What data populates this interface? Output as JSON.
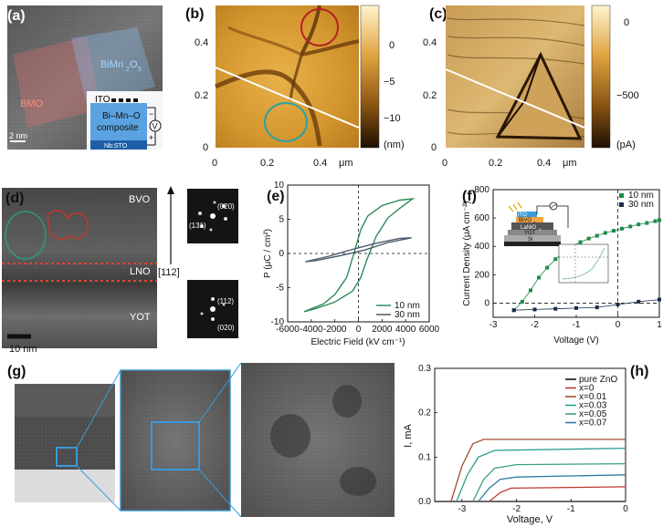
{
  "panels": {
    "a": {
      "letter": "(a)",
      "labels": {
        "bmo": "BMO",
        "bimn": "BiMn",
        "bimn_sub1": "2",
        "bimn_o": "O",
        "bimn_sub2": "5",
        "ito": "ITO",
        "composite1": "Bi–Mn–O",
        "composite2": "composite",
        "substrate": "Nb:STO",
        "v": "V",
        "minus": "−",
        "plus": "+",
        "scale": "2 nm"
      }
    },
    "b": {
      "letter": "(b)",
      "yticks": [
        "0.4",
        "0.2",
        "0"
      ],
      "xticks": [
        "0",
        "0.2",
        "0.4"
      ],
      "xunit": "μm",
      "colorbar_ticks": [
        "0",
        "−5",
        "−10"
      ],
      "colorbar_unit": "(nm)",
      "colors": {
        "low": "#3a1e05",
        "mid": "#b77c1c",
        "high": "#fde9b0"
      }
    },
    "c": {
      "letter": "(c)",
      "yticks": [
        "0.4",
        "0.2",
        "0"
      ],
      "xticks": [
        "0",
        "0.2",
        "0.4"
      ],
      "xunit": "μm",
      "colorbar_ticks": [
        "0",
        "−500"
      ],
      "colorbar_unit": "(pA)"
    },
    "d": {
      "letter": "(d)",
      "labels": {
        "bvo": "BVO",
        "lno": "LNO",
        "yot": "YOT",
        "direction": "[112]",
        "scale": "10 nm",
        "saed1_a": "(020)",
        "saed1_b": "(131)",
        "saed2_a": "(112)",
        "saed2_b": "(020)"
      }
    },
    "e": {
      "letter": "(e)"
    },
    "f": {
      "letter": "(f)",
      "inset_labels": {
        "ito": "ITO",
        "bvo": "BiVO",
        "bvo_sub": "4",
        "lno": "LaNiO",
        "lno_sub": "3",
        "yot": "YOT",
        "si": "Si"
      }
    },
    "g": {
      "letter": "(g)"
    },
    "h": {
      "letter": "(h)"
    }
  },
  "chart_data": [
    {
      "id": "e",
      "type": "line",
      "title": "",
      "xlabel": "Electric Field (kV cm⁻¹)",
      "ylabel": "P (μC / cm²)",
      "xlim": [
        -6000,
        6000
      ],
      "ylim": [
        -10,
        10
      ],
      "xticks": [
        "-6000",
        "-4000",
        "-2000",
        "0",
        "2000",
        "4000",
        "6000"
      ],
      "yticks": [
        "10",
        "5",
        "0",
        "-5",
        "-10"
      ],
      "legend": "bottom-right",
      "series": [
        {
          "name": "10 nm",
          "color": "#2e8b57",
          "upper": [
            [
              -4600,
              -8.5
            ],
            [
              -3000,
              -7.4
            ],
            [
              -2000,
              -6.0
            ],
            [
              -1000,
              -3.5
            ],
            [
              -300,
              0.5
            ],
            [
              200,
              3.5
            ],
            [
              800,
              5.5
            ],
            [
              2000,
              7.0
            ],
            [
              3500,
              7.8
            ],
            [
              4600,
              8.0
            ]
          ],
          "lower": [
            [
              4600,
              8.0
            ],
            [
              3500,
              6.6
            ],
            [
              2500,
              5.2
            ],
            [
              1500,
              2.5
            ],
            [
              700,
              -1.0
            ],
            [
              200,
              -3.5
            ],
            [
              -500,
              -5.5
            ],
            [
              -2000,
              -7.1
            ],
            [
              -3500,
              -8.0
            ],
            [
              -4600,
              -8.5
            ]
          ]
        },
        {
          "name": "30 nm",
          "color": "#4a5a6e",
          "upper": [
            [
              -4500,
              -1.2
            ],
            [
              -2500,
              -0.4
            ],
            [
              -500,
              0.6
            ],
            [
              1500,
              1.5
            ],
            [
              3500,
              2.2
            ],
            [
              4500,
              2.3
            ]
          ],
          "lower": [
            [
              4500,
              2.3
            ],
            [
              2500,
              1.6
            ],
            [
              500,
              0.5
            ],
            [
              -1500,
              -0.3
            ],
            [
              -3500,
              -1.0
            ],
            [
              -4500,
              -1.2
            ]
          ]
        }
      ]
    },
    {
      "id": "f",
      "type": "line",
      "title": "",
      "xlabel": "Voltage (V)",
      "ylabel": "Current Density (μA cm⁻²)",
      "xlim": [
        -3,
        1
      ],
      "ylim": [
        -100,
        800
      ],
      "xticks": [
        "-3",
        "-2",
        "-1",
        "0",
        "1"
      ],
      "yticks": [
        "0",
        "200",
        "400",
        "600",
        "800"
      ],
      "legend": "top-right",
      "series": [
        {
          "name": "10 nm",
          "color": "#1e8a4a",
          "points": [
            [
              -2.5,
              -50
            ],
            [
              -2.3,
              10
            ],
            [
              -2.1,
              90
            ],
            [
              -1.9,
              180
            ],
            [
              -1.7,
              250
            ],
            [
              -1.5,
              310
            ],
            [
              -1.3,
              360
            ],
            [
              -1.1,
              400
            ],
            [
              -0.9,
              430
            ],
            [
              -0.7,
              455
            ],
            [
              -0.5,
              475
            ],
            [
              -0.3,
              495
            ],
            [
              -0.1,
              510
            ],
            [
              0.1,
              525
            ],
            [
              0.3,
              540
            ],
            [
              0.5,
              555
            ],
            [
              0.7,
              565
            ],
            [
              0.9,
              578
            ],
            [
              1.0,
              585
            ]
          ]
        },
        {
          "name": "30 nm",
          "color": "#1a2b4a",
          "points": [
            [
              -2.5,
              -50
            ],
            [
              -2.0,
              -45
            ],
            [
              -1.5,
              -40
            ],
            [
              -1.0,
              -35
            ],
            [
              -0.5,
              -30
            ],
            [
              0.0,
              -10
            ],
            [
              0.5,
              10
            ],
            [
              1.0,
              25
            ]
          ]
        }
      ]
    },
    {
      "id": "h",
      "type": "line",
      "title": "",
      "xlabel": "Voltage, V",
      "ylabel": "I, mA",
      "xlim": [
        -3.5,
        0
      ],
      "ylim": [
        0,
        0.3
      ],
      "xticks": [
        "-3",
        "-2",
        "-1",
        "0"
      ],
      "yticks": [
        "0.0",
        "0.1",
        "0.2",
        "0.3"
      ],
      "legend": "top-right",
      "series": [
        {
          "name": "pure ZnO",
          "color": "#111111",
          "points": [
            [
              -3.5,
              0.0
            ],
            [
              0,
              0.0
            ]
          ]
        },
        {
          "name": "x=0",
          "color": "#c0392b",
          "points": [
            [
              -2.5,
              0.0
            ],
            [
              -2.3,
              0.02
            ],
            [
              -2.1,
              0.03
            ],
            [
              0,
              0.033
            ]
          ]
        },
        {
          "name": "x=0.01",
          "color": "#a0522d",
          "points": [
            [
              -3.2,
              0.0
            ],
            [
              -3.0,
              0.08
            ],
            [
              -2.8,
              0.13
            ],
            [
              -2.6,
              0.14
            ],
            [
              0,
              0.14
            ]
          ]
        },
        {
          "name": "x=0.03",
          "color": "#2a9d8f",
          "points": [
            [
              -3.1,
              0.0
            ],
            [
              -2.9,
              0.06
            ],
            [
              -2.7,
              0.1
            ],
            [
              -2.4,
              0.115
            ],
            [
              0,
              0.12
            ]
          ]
        },
        {
          "name": "x=0.05",
          "color": "#3aa17e",
          "points": [
            [
              -2.8,
              0.0
            ],
            [
              -2.6,
              0.05
            ],
            [
              -2.4,
              0.075
            ],
            [
              -2.0,
              0.083
            ],
            [
              0,
              0.085
            ]
          ]
        },
        {
          "name": "x=0.07",
          "color": "#2c7da0",
          "points": [
            [
              -2.7,
              0.0
            ],
            [
              -2.5,
              0.03
            ],
            [
              -2.3,
              0.05
            ],
            [
              -2.0,
              0.055
            ],
            [
              0,
              0.06
            ]
          ]
        }
      ]
    }
  ]
}
